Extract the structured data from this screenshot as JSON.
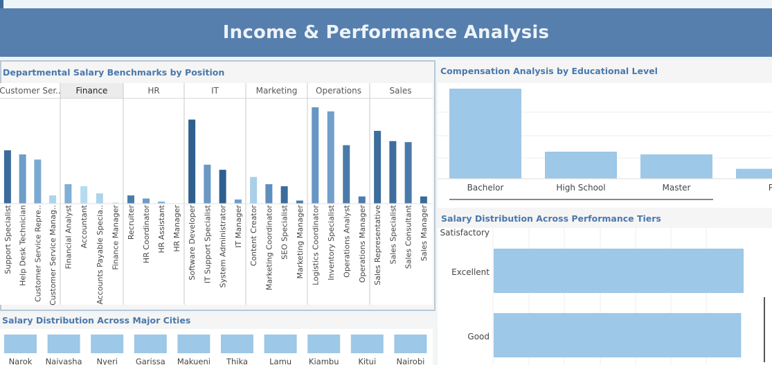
{
  "header": {
    "title": "Income & Performance Analysis"
  },
  "dept_panel": {
    "title": "Departmental Salary Benchmarks by Position"
  },
  "edu_panel": {
    "title": "Compensation Analysis by Educational Level"
  },
  "perf_panel": {
    "title": "Salary Distribution Across Performance Tiers"
  },
  "city_panel": {
    "title": "Salary Distribution Across Major Cities"
  },
  "chart_data": [
    {
      "type": "bar",
      "title": "Departmental Salary Benchmarks by Position",
      "highlighted_group": "Finance",
      "groups": [
        {
          "name": "Customer Ser..",
          "bars": [
            {
              "label": "Support Specialist",
              "value": 52,
              "color": "#3a6b9b"
            },
            {
              "label": "Help Desk Technician",
              "value": 48,
              "color": "#6e9dc8"
            },
            {
              "label": "Customer Service Repre..",
              "value": 43,
              "color": "#7ca9d1"
            },
            {
              "label": "Customer Service Manag..",
              "value": 8,
              "color": "#aed3ec"
            }
          ]
        },
        {
          "name": "Finance",
          "bars": [
            {
              "label": "Financial Analyst",
              "value": 19,
              "color": "#81aed4"
            },
            {
              "label": "Accountant",
              "value": 17,
              "color": "#b5dbf0"
            },
            {
              "label": "Accounts Payable Specia..",
              "value": 10,
              "color": "#acd3ec"
            },
            {
              "label": "Finance Manager",
              "value": 1,
              "color": "#b7dcf0"
            }
          ]
        },
        {
          "name": "HR",
          "bars": [
            {
              "label": "Recruiter",
              "value": 8,
              "color": "#4c7caa"
            },
            {
              "label": "HR Coordinator",
              "value": 5,
              "color": "#6d9bc6"
            },
            {
              "label": "HR Assistant",
              "value": 2,
              "color": "#86b2d8"
            },
            {
              "label": "HR Manager",
              "value": 0,
              "color": "#a9d0ea"
            }
          ]
        },
        {
          "name": "IT",
          "bars": [
            {
              "label": "Software Developer",
              "value": 82,
              "color": "#2e5f8f"
            },
            {
              "label": "IT Support Specialist",
              "value": 38,
              "color": "#6a98c3"
            },
            {
              "label": "System Administrator",
              "value": 33,
              "color": "#2f5f8f"
            },
            {
              "label": "IT Manager",
              "value": 4,
              "color": "#6f9dc7"
            }
          ]
        },
        {
          "name": "Marketing",
          "bars": [
            {
              "label": "Content Creator",
              "value": 26,
              "color": "#a9d0ea"
            },
            {
              "label": "Marketing Coordinator",
              "value": 19,
              "color": "#5f8fbc"
            },
            {
              "label": "SEO Specialist",
              "value": 17,
              "color": "#3b6c9b"
            },
            {
              "label": "Marketing Manager",
              "value": 3,
              "color": "#4d7dab"
            }
          ]
        },
        {
          "name": "Operations",
          "bars": [
            {
              "label": "Logistics Coordinator",
              "value": 94,
              "color": "#6896c3"
            },
            {
              "label": "Inventory Specialist",
              "value": 90,
              "color": "#729fca"
            },
            {
              "label": "Operations Analyst",
              "value": 57,
              "color": "#4a7aa9"
            },
            {
              "label": "Operations Manager",
              "value": 7,
              "color": "#4d7dab"
            }
          ]
        },
        {
          "name": "Sales",
          "bars": [
            {
              "label": "Sales Representative",
              "value": 71,
              "color": "#3c6d9c"
            },
            {
              "label": "Sales Specialist",
              "value": 61,
              "color": "#3e6e9d"
            },
            {
              "label": "Sales Consultant",
              "value": 60,
              "color": "#4a7aa9"
            },
            {
              "label": "Sales Manager",
              "value": 7,
              "color": "#3a6b9b"
            }
          ]
        }
      ]
    },
    {
      "type": "bar",
      "title": "Compensation Analysis by Educational Level",
      "categories": [
        "Bachelor",
        "High School",
        "Master",
        "Pl"
      ],
      "values": [
        100,
        30,
        27,
        11
      ],
      "color": "#9dc8e7"
    },
    {
      "type": "bar",
      "orientation": "horizontal",
      "title": "Salary Distribution Across Performance Tiers",
      "categories": [
        "Satisfactory",
        "Excellent",
        "Good"
      ],
      "values": [
        null,
        100,
        99
      ],
      "color": "#9dc8e7"
    },
    {
      "type": "bar",
      "title": "Salary Distribution Across Major Cities",
      "categories": [
        "Narok",
        "Naivasha",
        "Nyeri",
        "Garissa",
        "Makueni",
        "Thika",
        "Lamu",
        "Kiambu",
        "Kitui",
        "Nairobi"
      ],
      "values": [
        100,
        100,
        100,
        100,
        100,
        100,
        100,
        100,
        100,
        100
      ],
      "color": "#9dc8e7"
    }
  ]
}
